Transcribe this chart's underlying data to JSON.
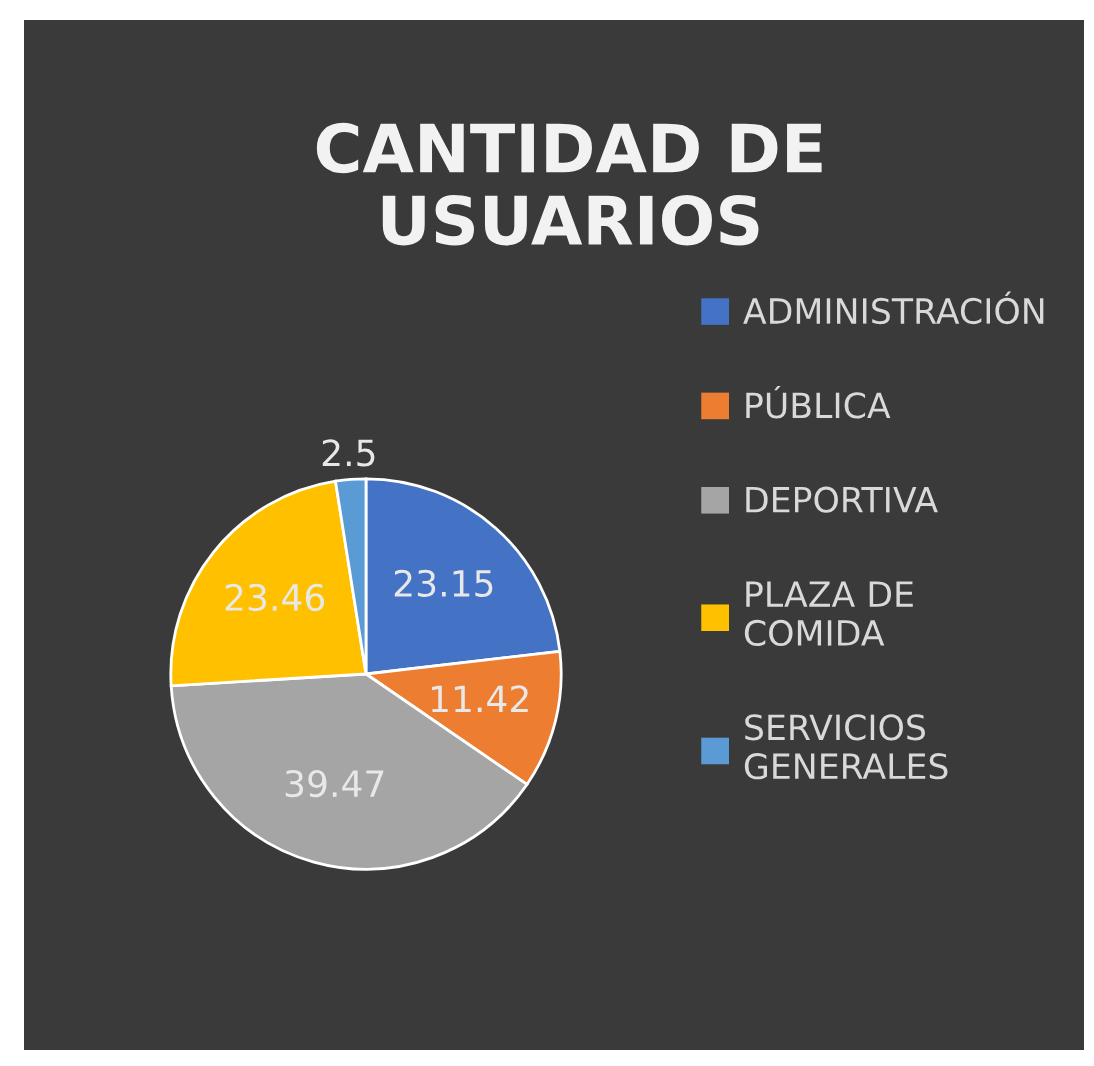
{
  "chart_data": {
    "type": "pie",
    "title": "CANTIDAD DE USUARIOS",
    "categories": [
      "ADMINISTRACIÓN",
      "PÚBLICA",
      "DEPORTIVA",
      "PLAZA DE COMIDA",
      "SERVICIOS GENERALES"
    ],
    "values": [
      23.15,
      11.42,
      39.47,
      23.46,
      2.5
    ],
    "colors": [
      "#4472c4",
      "#ed7d31",
      "#a5a5a5",
      "#ffc000",
      "#5b9bd5"
    ],
    "data_labels": true,
    "legend": "right"
  }
}
